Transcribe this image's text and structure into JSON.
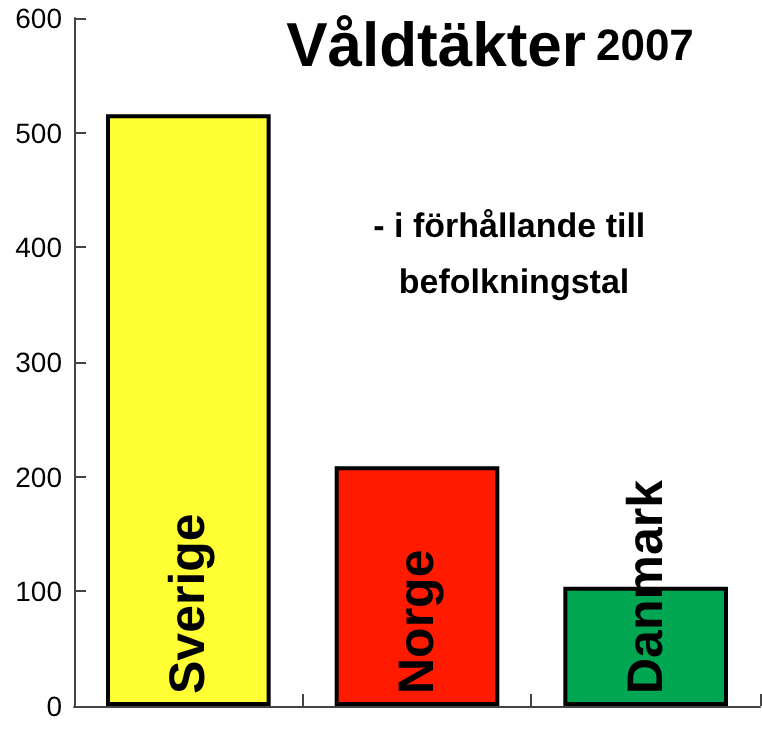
{
  "chart_data": {
    "type": "bar",
    "title": "Våldtäkter 2007",
    "subtitle": "- i förhållande till befolkningstal",
    "categories": [
      "Sverige",
      "Norge",
      "Danmark"
    ],
    "values": [
      516,
      209,
      104
    ],
    "colors": [
      "#ffff33",
      "#ff1a00",
      "#00a651"
    ],
    "ylim": [
      0,
      600
    ],
    "yticks": [
      0,
      100,
      200,
      300,
      400,
      500,
      600
    ]
  }
}
